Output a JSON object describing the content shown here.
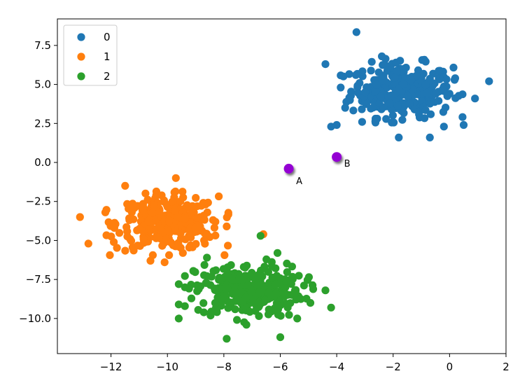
{
  "chart_data": {
    "type": "scatter",
    "title": "",
    "xlabel": "",
    "ylabel": "",
    "xlim": [
      -13.9,
      2.0
    ],
    "ylim": [
      -12.25,
      9.2
    ],
    "xticks": [
      -12,
      -10,
      -8,
      -6,
      -4,
      -2,
      0,
      2
    ],
    "yticks": [
      -10.0,
      -7.5,
      -5.0,
      -2.5,
      0.0,
      2.5,
      5.0,
      7.5
    ],
    "xtick_labels": [
      "−12",
      "−10",
      "−8",
      "−6",
      "−4",
      "−2",
      "0",
      "2"
    ],
    "ytick_labels": [
      "−10.0",
      "−7.5",
      "−5.0",
      "−2.5",
      "0.0",
      "2.5",
      "5.0",
      "7.5"
    ],
    "grid": false,
    "legend_position": "top-left",
    "series": [
      {
        "name": "0",
        "color": "#1f77b4",
        "center": [
          -1.7,
          4.6
        ],
        "spread": [
          0.9,
          0.85
        ],
        "n": 300,
        "values": [
          [
            -3.3,
            8.35
          ],
          [
            1.4,
            5.2
          ],
          [
            -4.4,
            6.3
          ],
          [
            0.9,
            4.1
          ],
          [
            -4.0,
            2.4
          ],
          [
            -3.1,
            2.6
          ],
          [
            -1.8,
            1.6
          ],
          [
            -0.7,
            1.6
          ],
          [
            0.5,
            2.4
          ],
          [
            -2.4,
            6.8
          ],
          [
            -1.9,
            6.4
          ],
          [
            0.2,
            5.4
          ],
          [
            -3.7,
            3.5
          ],
          [
            -0.2,
            2.3
          ],
          [
            -4.2,
            2.3
          ]
        ]
      },
      {
        "name": "1",
        "color": "#ff7f0e",
        "center": [
          -10.0,
          -3.9
        ],
        "spread": [
          0.9,
          0.85
        ],
        "n": 300,
        "values": [
          [
            -13.1,
            -3.5
          ],
          [
            -12.8,
            -5.2
          ],
          [
            -12.2,
            -3.2
          ],
          [
            -11.5,
            -1.5
          ],
          [
            -9.7,
            -1.0
          ],
          [
            -10.6,
            -6.3
          ],
          [
            -8.3,
            -3.8
          ],
          [
            -6.6,
            -4.6
          ],
          [
            -8.7,
            -5.0
          ],
          [
            -11.9,
            -5.1
          ],
          [
            -10.1,
            -6.4
          ],
          [
            -7.9,
            -4.1
          ]
        ]
      },
      {
        "name": "2",
        "color": "#2ca02c",
        "center": [
          -7.1,
          -8.2
        ],
        "spread": [
          0.95,
          0.85
        ],
        "n": 300,
        "values": [
          [
            -9.6,
            -10.0
          ],
          [
            -7.9,
            -11.3
          ],
          [
            -6.0,
            -11.2
          ],
          [
            -4.2,
            -9.3
          ],
          [
            -9.6,
            -9.1
          ],
          [
            -6.7,
            -4.7
          ],
          [
            -6.1,
            -5.8
          ],
          [
            -9.6,
            -7.8
          ],
          [
            -8.6,
            -6.1
          ],
          [
            -5.4,
            -10.0
          ],
          [
            -4.4,
            -8.2
          ],
          [
            -7.2,
            -10.4
          ]
        ]
      }
    ],
    "annotations": [
      {
        "label": "A",
        "x": -5.7,
        "y": -0.4,
        "color": "#9400d3"
      },
      {
        "label": "B",
        "x": -4.0,
        "y": 0.35,
        "color": "#9400d3"
      }
    ]
  }
}
